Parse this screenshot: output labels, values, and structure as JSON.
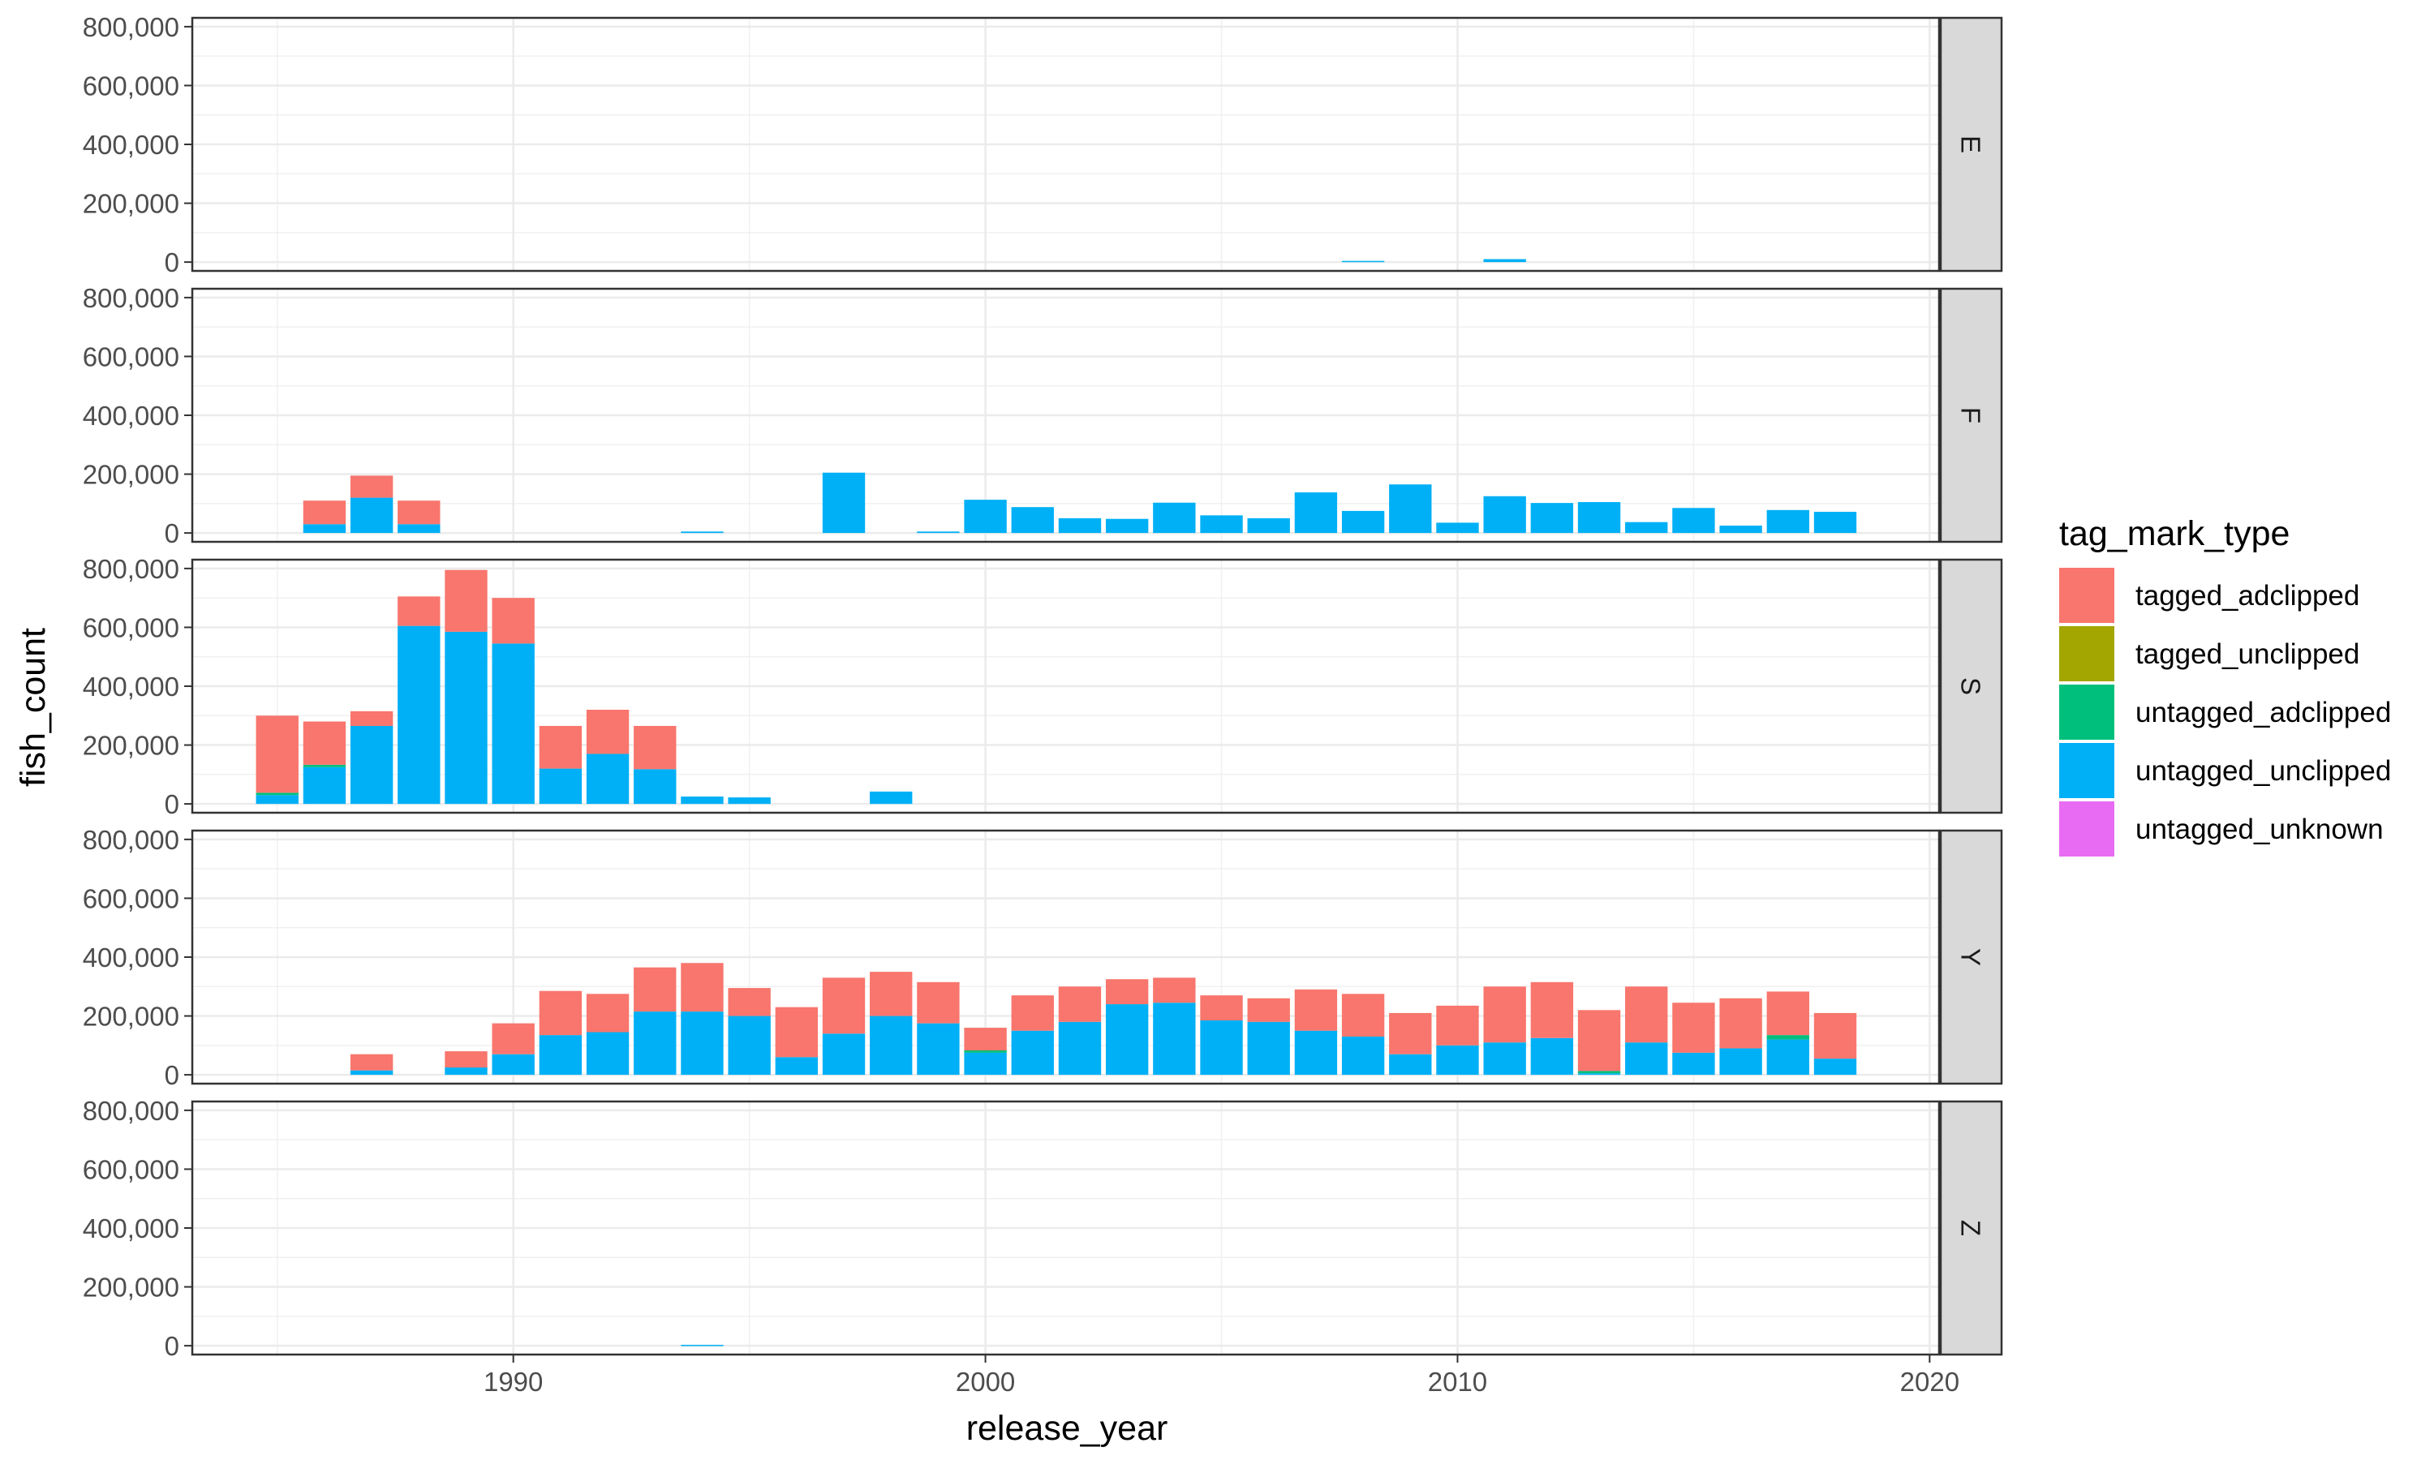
{
  "chart_data": {
    "type": "bar",
    "stacked": true,
    "faceted": true,
    "x_label": "release_year",
    "y_label": "fish_count",
    "x_ticks": [
      1990,
      2000,
      2010,
      2020
    ],
    "y_ticks": [
      0,
      200000,
      400000,
      600000,
      800000
    ],
    "y_tick_labels": [
      "0",
      "200,000",
      "400,000",
      "600,000",
      "800,000"
    ],
    "x_range": [
      1983.2,
      2020.2
    ],
    "y_range": [
      -30000,
      830000
    ],
    "grid": true,
    "legend": {
      "title": "tag_mark_type",
      "position": "right",
      "entries": [
        {
          "name": "tagged_adclipped",
          "color": "#F8766D"
        },
        {
          "name": "tagged_unclipped",
          "color": "#A3A500"
        },
        {
          "name": "untagged_adclipped",
          "color": "#00BF7D"
        },
        {
          "name": "untagged_unclipped",
          "color": "#00B0F6"
        },
        {
          "name": "untagged_unknown",
          "color": "#E76BF3"
        }
      ]
    },
    "stack_order_bottom_to_top": [
      "untagged_unknown",
      "untagged_unclipped",
      "untagged_adclipped",
      "tagged_unclipped",
      "tagged_adclipped"
    ],
    "facets": [
      {
        "label": "E",
        "bars": [
          {
            "year": 2008,
            "untagged_unclipped": 4000
          },
          {
            "year": 2011,
            "untagged_unclipped": 10000
          }
        ]
      },
      {
        "label": "F",
        "bars": [
          {
            "year": 1986,
            "untagged_unclipped": 30000,
            "tagged_adclipped": 80000
          },
          {
            "year": 1987,
            "untagged_unclipped": 120000,
            "tagged_adclipped": 75000
          },
          {
            "year": 1988,
            "untagged_unclipped": 30000,
            "tagged_adclipped": 80000
          },
          {
            "year": 1994,
            "untagged_unclipped": 5000
          },
          {
            "year": 1997,
            "untagged_unclipped": 205000
          },
          {
            "year": 1999,
            "untagged_unclipped": 5000
          },
          {
            "year": 2000,
            "untagged_unclipped": 113000
          },
          {
            "year": 2001,
            "untagged_unclipped": 88000
          },
          {
            "year": 2002,
            "untagged_unclipped": 50000
          },
          {
            "year": 2003,
            "untagged_unclipped": 48000
          },
          {
            "year": 2004,
            "untagged_unclipped": 103000
          },
          {
            "year": 2005,
            "untagged_unclipped": 60000
          },
          {
            "year": 2006,
            "untagged_unclipped": 50000
          },
          {
            "year": 2007,
            "untagged_unclipped": 138000
          },
          {
            "year": 2008,
            "untagged_unclipped": 75000
          },
          {
            "year": 2009,
            "untagged_unclipped": 165000
          },
          {
            "year": 2010,
            "untagged_unclipped": 35000
          },
          {
            "year": 2011,
            "untagged_unclipped": 125000
          },
          {
            "year": 2012,
            "untagged_unclipped": 102000
          },
          {
            "year": 2013,
            "untagged_unclipped": 105000
          },
          {
            "year": 2014,
            "untagged_unclipped": 37000
          },
          {
            "year": 2015,
            "untagged_unclipped": 85000
          },
          {
            "year": 2016,
            "untagged_unclipped": 25000
          },
          {
            "year": 2017,
            "untagged_unclipped": 78000
          },
          {
            "year": 2018,
            "untagged_unclipped": 72000
          }
        ]
      },
      {
        "label": "S",
        "bars": [
          {
            "year": 1985,
            "untagged_unclipped": 30000,
            "untagged_adclipped": 8000,
            "tagged_adclipped": 262000
          },
          {
            "year": 1986,
            "untagged_unclipped": 125000,
            "untagged_adclipped": 8000,
            "tagged_adclipped": 147000
          },
          {
            "year": 1987,
            "untagged_unclipped": 265000,
            "tagged_adclipped": 50000
          },
          {
            "year": 1988,
            "untagged_unclipped": 605000,
            "tagged_adclipped": 100000
          },
          {
            "year": 1989,
            "untagged_unclipped": 585000,
            "tagged_adclipped": 210000
          },
          {
            "year": 1990,
            "untagged_unclipped": 545000,
            "tagged_adclipped": 155000
          },
          {
            "year": 1991,
            "untagged_unclipped": 120000,
            "tagged_adclipped": 145000
          },
          {
            "year": 1992,
            "untagged_unclipped": 170000,
            "tagged_adclipped": 150000
          },
          {
            "year": 1993,
            "untagged_unclipped": 118000,
            "tagged_adclipped": 147000
          },
          {
            "year": 1994,
            "untagged_unclipped": 25000
          },
          {
            "year": 1995,
            "untagged_unclipped": 22000
          },
          {
            "year": 1998,
            "untagged_unclipped": 42000
          }
        ]
      },
      {
        "label": "Y",
        "bars": [
          {
            "year": 1987,
            "untagged_unclipped": 15000,
            "tagged_adclipped": 55000
          },
          {
            "year": 1989,
            "untagged_unclipped": 25000,
            "tagged_adclipped": 55000
          },
          {
            "year": 1990,
            "untagged_unclipped": 70000,
            "tagged_adclipped": 105000
          },
          {
            "year": 1991,
            "untagged_unclipped": 135000,
            "tagged_adclipped": 150000
          },
          {
            "year": 1992,
            "untagged_unclipped": 145000,
            "tagged_adclipped": 130000
          },
          {
            "year": 1993,
            "untagged_unclipped": 215000,
            "tagged_adclipped": 150000
          },
          {
            "year": 1994,
            "untagged_unclipped": 215000,
            "tagged_adclipped": 165000
          },
          {
            "year": 1995,
            "untagged_unclipped": 200000,
            "tagged_adclipped": 95000
          },
          {
            "year": 1996,
            "untagged_unclipped": 60000,
            "tagged_adclipped": 170000
          },
          {
            "year": 1997,
            "untagged_unclipped": 140000,
            "tagged_adclipped": 190000
          },
          {
            "year": 1998,
            "untagged_unclipped": 200000,
            "tagged_adclipped": 150000
          },
          {
            "year": 1999,
            "untagged_unclipped": 175000,
            "tagged_adclipped": 140000
          },
          {
            "year": 2000,
            "untagged_unclipped": 75000,
            "untagged_adclipped": 8000,
            "tagged_adclipped": 77000
          },
          {
            "year": 2001,
            "untagged_unclipped": 150000,
            "tagged_adclipped": 120000
          },
          {
            "year": 2002,
            "untagged_unclipped": 180000,
            "tagged_adclipped": 120000
          },
          {
            "year": 2003,
            "untagged_unclipped": 240000,
            "tagged_adclipped": 85000
          },
          {
            "year": 2004,
            "untagged_unclipped": 245000,
            "tagged_adclipped": 85000
          },
          {
            "year": 2005,
            "untagged_unclipped": 185000,
            "tagged_adclipped": 85000
          },
          {
            "year": 2006,
            "untagged_unclipped": 180000,
            "tagged_adclipped": 80000
          },
          {
            "year": 2007,
            "untagged_unclipped": 150000,
            "tagged_adclipped": 140000
          },
          {
            "year": 2008,
            "untagged_unclipped": 130000,
            "tagged_adclipped": 145000
          },
          {
            "year": 2009,
            "untagged_unclipped": 70000,
            "tagged_adclipped": 140000
          },
          {
            "year": 2010,
            "untagged_unclipped": 100000,
            "tagged_adclipped": 135000
          },
          {
            "year": 2011,
            "untagged_unclipped": 110000,
            "tagged_adclipped": 190000
          },
          {
            "year": 2012,
            "untagged_unclipped": 125000,
            "tagged_adclipped": 190000
          },
          {
            "year": 2013,
            "untagged_unclipped": 5000,
            "untagged_adclipped": 8000,
            "tagged_adclipped": 207000
          },
          {
            "year": 2014,
            "untagged_unclipped": 110000,
            "tagged_adclipped": 190000
          },
          {
            "year": 2015,
            "untagged_unclipped": 75000,
            "tagged_adclipped": 170000
          },
          {
            "year": 2016,
            "untagged_unclipped": 90000,
            "tagged_adclipped": 170000
          },
          {
            "year": 2017,
            "untagged_unclipped": 120000,
            "untagged_adclipped": 15000,
            "tagged_adclipped": 148000
          },
          {
            "year": 2018,
            "untagged_unclipped": 55000,
            "tagged_adclipped": 155000
          }
        ]
      },
      {
        "label": "Z",
        "bars": [
          {
            "year": 1994,
            "untagged_unclipped": 3000
          }
        ]
      }
    ]
  }
}
